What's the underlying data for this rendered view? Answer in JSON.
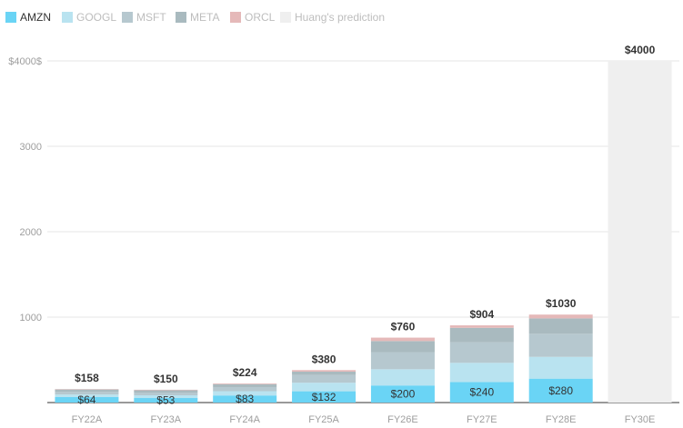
{
  "chart_data": {
    "type": "bar",
    "stacked": true,
    "categories": [
      "FY22A",
      "FY23A",
      "FY24A",
      "FY25A",
      "FY26E",
      "FY27E",
      "FY28E",
      "FY30E"
    ],
    "series": [
      {
        "name": "AMZN",
        "color": "#6ad4f5",
        "values": [
          64,
          53,
          83,
          132,
          200,
          240,
          280,
          0
        ]
      },
      {
        "name": "GOOGL",
        "color": "#b9e3f0",
        "values": [
          30,
          32,
          50,
          100,
          190,
          225,
          255,
          0
        ]
      },
      {
        "name": "MSFT",
        "color": "#b6c8cf",
        "values": [
          30,
          32,
          48,
          90,
          200,
          240,
          270,
          0
        ]
      },
      {
        "name": "META",
        "color": "#a9babf",
        "values": [
          29,
          27,
          34,
          40,
          130,
          170,
          180,
          0
        ]
      },
      {
        "name": "ORCL",
        "color": "#e5b9b9",
        "values": [
          5,
          6,
          9,
          18,
          40,
          29,
          45,
          0
        ]
      },
      {
        "name": "Huang's prediction",
        "color": "#efefef",
        "values": [
          0,
          0,
          0,
          0,
          0,
          0,
          0,
          4000
        ]
      }
    ],
    "totals": [
      "$158",
      "$150",
      "$224",
      "$380",
      "$760",
      "$904",
      "$1030",
      "$4000"
    ],
    "amzn_labels": [
      "$64",
      "$53",
      "$83",
      "$132",
      "$200",
      "$240",
      "$280",
      ""
    ],
    "yticks": [
      {
        "value": 1000,
        "label": "1000"
      },
      {
        "value": 2000,
        "label": "2000"
      },
      {
        "value": 3000,
        "label": "3000"
      },
      {
        "value": 4000,
        "label": "$4000$"
      }
    ],
    "ylim": [
      0,
      4000
    ],
    "grid": true,
    "legend_position": "top-left",
    "title": "",
    "xlabel": "",
    "ylabel": ""
  }
}
